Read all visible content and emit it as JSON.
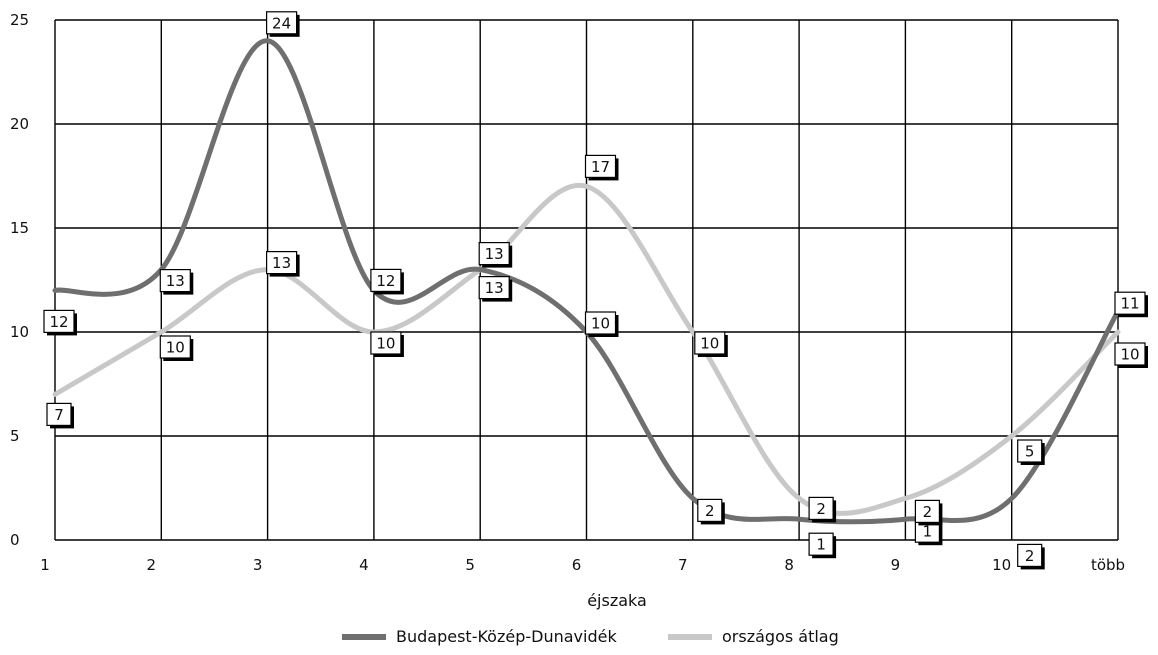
{
  "chart_data": {
    "type": "line",
    "xlabel": "éjszaka",
    "ylabel": "",
    "categories": [
      "1",
      "2",
      "3",
      "4",
      "5",
      "6",
      "7",
      "8",
      "9",
      "10",
      "több"
    ],
    "ylim": [
      0,
      25
    ],
    "yticks": [
      "0",
      "5",
      "10",
      "15",
      "20",
      "25"
    ],
    "grid": true,
    "legend_position": "bottom",
    "series": [
      {
        "name": "Budapest-Közép-Dunavidék",
        "color": "#6f6f6f",
        "values": [
          12,
          13,
          24,
          12,
          13,
          10,
          2,
          1,
          1,
          2,
          11
        ],
        "labels": [
          "12",
          "13",
          "24",
          "12",
          "13",
          "10",
          "2",
          "1",
          "1",
          "2",
          "11"
        ]
      },
      {
        "name": "országos átlag",
        "color": "#c8c8c8",
        "values": [
          7,
          10,
          13,
          10,
          13,
          17,
          10,
          2,
          2,
          5,
          10
        ],
        "labels": [
          "7",
          "10",
          "13",
          "10",
          "13",
          "17",
          "10",
          "2",
          "2",
          "5",
          "10"
        ]
      }
    ]
  }
}
